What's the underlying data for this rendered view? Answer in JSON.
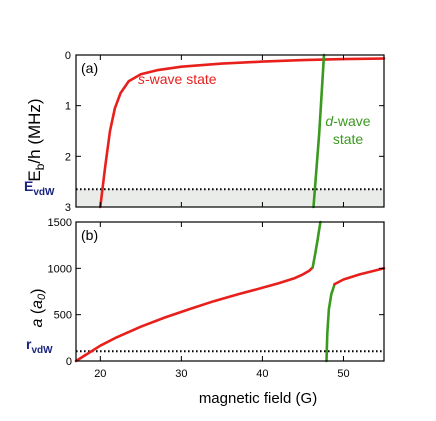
{
  "chart_data": [
    {
      "type": "line",
      "panel_label": "(a)",
      "ylabel_main": "E",
      "ylabel_sub": "b",
      "ylabel_rest": "/h (MHz)",
      "ylim": [
        3,
        0
      ],
      "y_ticks": [
        "0",
        "1",
        "2",
        "3"
      ],
      "xlim": [
        17,
        55
      ],
      "reference_line": {
        "label_main": "E",
        "label_sub": "vdW",
        "y": 2.65,
        "style": "dotted",
        "shaded_below": true
      },
      "annotations": [
        {
          "text_italic": "s",
          "text": "-wave state",
          "color": "#e8201c"
        },
        {
          "text_italic": "d",
          "text": "-wave",
          "text2": "state",
          "color": "#3a9a1f"
        }
      ],
      "series": [
        {
          "label_ref": "s-wave state",
          "color": "#e8201c",
          "x": [
            20.0,
            20.6,
            21.2,
            21.8,
            22.5,
            23.5,
            25,
            27,
            30,
            35,
            40,
            45,
            50,
            55
          ],
          "y": [
            3.0,
            2.2,
            1.5,
            1.05,
            0.75,
            0.52,
            0.38,
            0.3,
            0.23,
            0.17,
            0.13,
            0.1,
            0.08,
            0.07
          ]
        },
        {
          "label_ref": "d-wave state",
          "color": "#3a9a1f",
          "x": [
            46.3,
            47.0,
            47.6
          ],
          "y": [
            3.0,
            1.55,
            0.0
          ]
        }
      ]
    },
    {
      "type": "line",
      "panel_label": "(b)",
      "ylabel_italic": "a",
      "ylabel_paren_open": " (",
      "ylabel_paren_italic": "a",
      "ylabel_paren_sub": "0",
      "ylabel_paren_close": ")",
      "ylim": [
        0,
        1500
      ],
      "y_ticks": [
        "0",
        "500",
        "1000",
        "1500"
      ],
      "xlim": [
        17,
        55
      ],
      "x_ticks": [
        "20",
        "30",
        "40",
        "50"
      ],
      "xlabel": "magnetic field (G)",
      "reference_line": {
        "label_main": "r",
        "label_sub": "vdW",
        "y": 105,
        "style": "dotted"
      },
      "series": [
        {
          "color": "#e8201c",
          "x": [
            17,
            18,
            19,
            20,
            22,
            25,
            28,
            31,
            34,
            37,
            40,
            42,
            44,
            45,
            45.8,
            46.2
          ],
          "y": [
            0,
            55,
            110,
            165,
            255,
            370,
            470,
            560,
            645,
            720,
            790,
            840,
            895,
            935,
            975,
            1010
          ]
        },
        {
          "color": "#3a9a1f",
          "x": [
            46.2,
            46.5,
            46.8,
            47.0,
            47.15
          ],
          "y": [
            1010,
            1150,
            1300,
            1420,
            1500
          ]
        },
        {
          "color": "#3a9a1f",
          "x": [
            47.9,
            48.0,
            48.2,
            48.5,
            48.9
          ],
          "y": [
            0,
            300,
            560,
            720,
            830
          ]
        },
        {
          "color": "#e8201c",
          "x": [
            48.9,
            50,
            52,
            55
          ],
          "y": [
            830,
            880,
            935,
            1000
          ]
        }
      ]
    }
  ]
}
